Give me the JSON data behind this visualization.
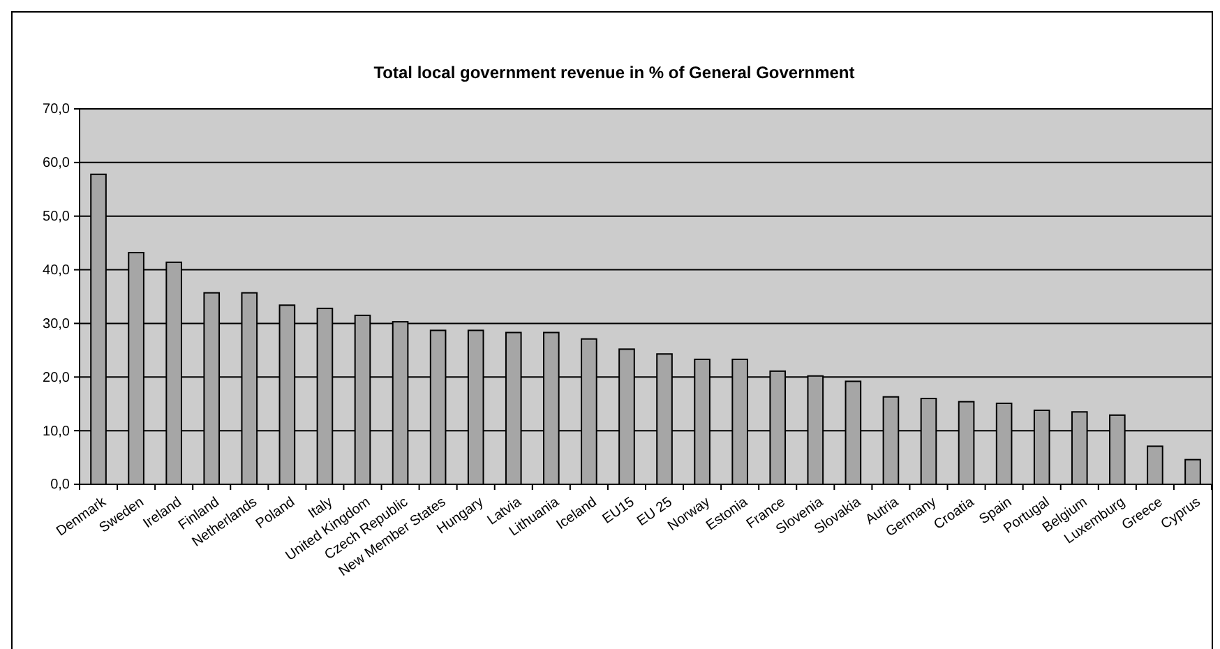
{
  "chart_data": {
    "type": "bar",
    "title": "Total local government revenue in % of General Government",
    "categories": [
      "Denmark",
      "Sweden",
      "Ireland",
      "Finland",
      "Netherlands",
      "Poland",
      "Italy",
      "United Kingdom",
      "Czech Republic",
      "New Member States",
      "Hungary",
      "Latvia",
      "Lithuania",
      "Iceland",
      "EU15",
      "EU 25",
      "Norway",
      "Estonia",
      "France",
      "Slovenia",
      "Slovakia",
      "Autria",
      "Germany",
      "Croatia",
      "Spain",
      "Portugal",
      "Belgium",
      "Luxemburg",
      "Greece",
      "Cyprus"
    ],
    "values": [
      57.8,
      43.2,
      41.4,
      35.7,
      35.7,
      33.4,
      32.8,
      31.5,
      30.3,
      28.7,
      28.7,
      28.3,
      28.3,
      27.1,
      25.2,
      24.3,
      23.3,
      23.3,
      21.1,
      20.2,
      19.2,
      16.3,
      16.0,
      15.4,
      15.1,
      13.8,
      13.5,
      12.9,
      7.1,
      4.6
    ],
    "color": "#a6a6a6",
    "ylim": [
      0,
      70
    ],
    "yticks": [
      {
        "value": 0,
        "label": "0,0"
      },
      {
        "value": 10,
        "label": "10,0"
      },
      {
        "value": 20,
        "label": "20,0"
      },
      {
        "value": 30,
        "label": "30,0"
      },
      {
        "value": 40,
        "label": "40,0"
      },
      {
        "value": 50,
        "label": "50,0"
      },
      {
        "value": 60,
        "label": "60,0"
      },
      {
        "value": 70,
        "label": "70,0"
      }
    ],
    "grid": "y"
  }
}
